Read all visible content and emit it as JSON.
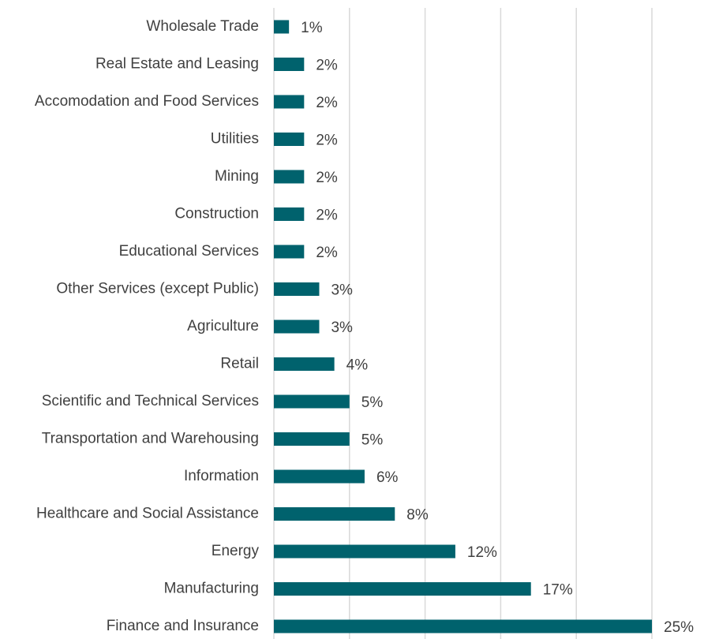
{
  "chart_data": {
    "type": "barh",
    "categories": [
      "Wholesale Trade",
      "Real Estate and Leasing",
      "Accomodation and Food Services",
      "Utilities",
      "Mining",
      "Construction",
      "Educational Services",
      "Other Services (except Public)",
      "Agriculture",
      "Retail",
      "Scientific and Technical Services",
      "Transportation and Warehousing",
      "Information",
      "Healthcare and Social Assistance",
      "Energy",
      "Manufacturing",
      "Finance and Insurance"
    ],
    "values": [
      1,
      2,
      2,
      2,
      2,
      2,
      2,
      3,
      3,
      4,
      5,
      5,
      6,
      8,
      12,
      17,
      25
    ],
    "value_labels": [
      "1%",
      "2%",
      "2%",
      "2%",
      "2%",
      "2%",
      "2%",
      "3%",
      "3%",
      "4%",
      "5%",
      "5%",
      "6%",
      "8%",
      "12%",
      "17%",
      "25%"
    ],
    "color": "#00626d",
    "xlim": [
      0,
      25
    ],
    "xticks": [
      0,
      5,
      10,
      15,
      20,
      25
    ],
    "grid": true
  }
}
